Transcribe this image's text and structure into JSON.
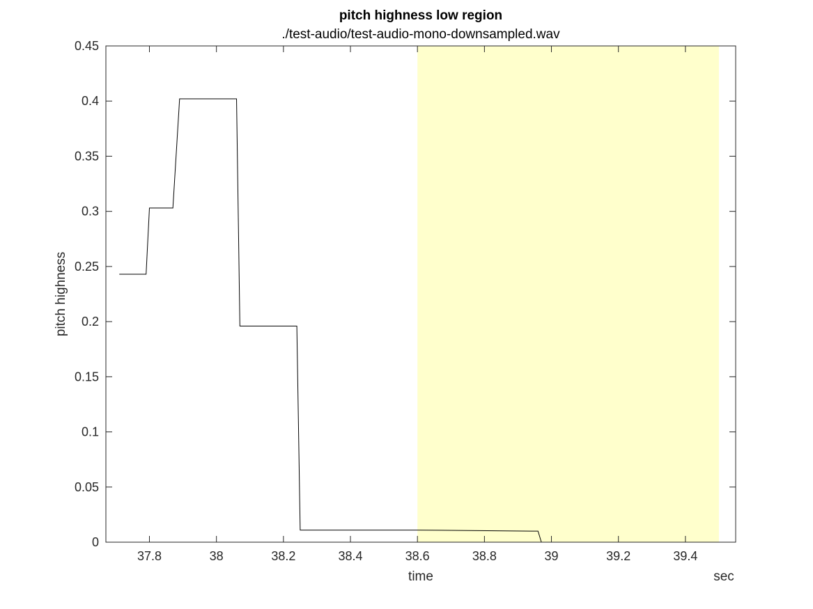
{
  "chart_data": {
    "type": "line",
    "title": "pitch highness low region",
    "subtitle": "./test-audio/test-audio-mono-downsampled.wav",
    "xlabel": "time",
    "ylabel": "pitch highness",
    "x_unit": "sec",
    "xlim": [
      37.67,
      39.55
    ],
    "ylim": [
      0,
      0.45
    ],
    "x_ticks": [
      37.8,
      38.0,
      38.2,
      38.4,
      38.6,
      38.8,
      39.0,
      39.2,
      39.4
    ],
    "x_tick_labels": [
      "37.8",
      "38",
      "38.2",
      "38.4",
      "38.6",
      "38.8",
      "39",
      "39.2",
      "39.4"
    ],
    "y_ticks": [
      0,
      0.05,
      0.1,
      0.15,
      0.2,
      0.25,
      0.3,
      0.35,
      0.4,
      0.45
    ],
    "y_tick_labels": [
      "0",
      "0.05",
      "0.1",
      "0.15",
      "0.2",
      "0.25",
      "0.3",
      "0.35",
      "0.4",
      "0.45"
    ],
    "grid": false,
    "highlight_region": {
      "x_start": 38.6,
      "x_end": 39.5,
      "color": "#ffffcc"
    },
    "series": [
      {
        "color": "#000000",
        "x": [
          37.71,
          37.79,
          37.8,
          37.87,
          37.89,
          38.06,
          38.07,
          38.24,
          38.25,
          38.6,
          38.96,
          38.97,
          39.5
        ],
        "values": [
          0.243,
          0.243,
          0.303,
          0.303,
          0.402,
          0.402,
          0.196,
          0.196,
          0.011,
          0.011,
          0.01,
          0.0,
          0.0
        ]
      }
    ]
  }
}
